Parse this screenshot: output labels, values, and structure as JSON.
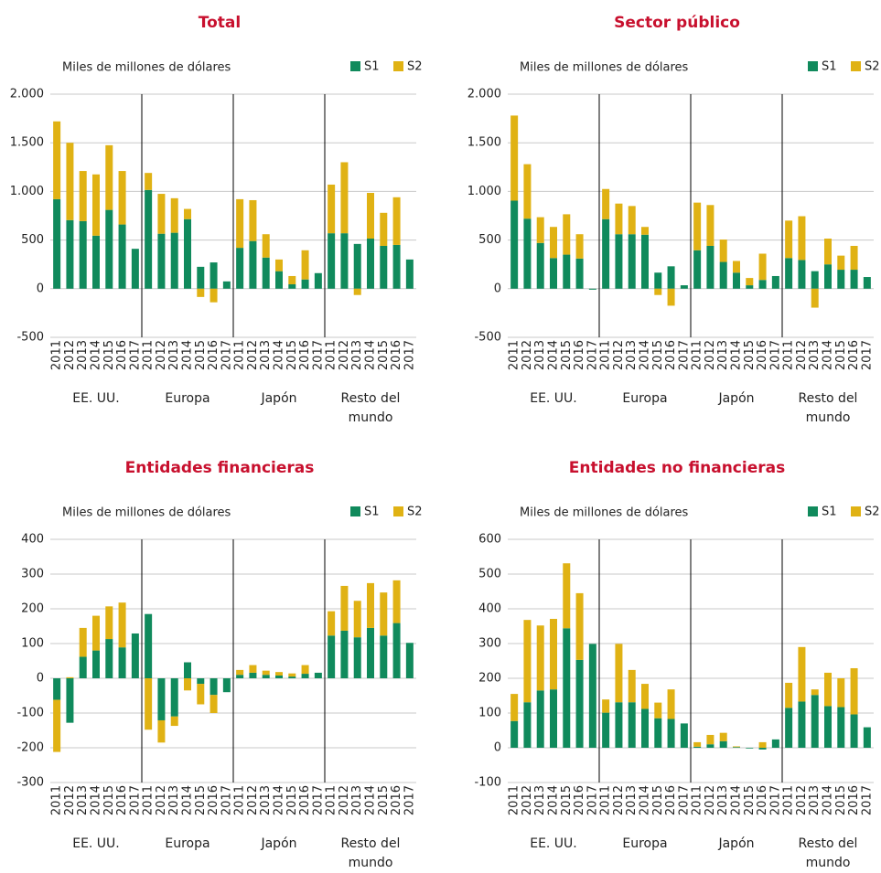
{
  "chart_data": [
    {
      "type": "bar",
      "title": "Total",
      "y_label": "Miles de millones de dólares",
      "groups": [
        "EE. UU.",
        "Europa",
        "Japón",
        "Resto del mundo"
      ],
      "categories": [
        "2011",
        "2012",
        "2013",
        "2014",
        "2015",
        "2016",
        "2017",
        "2011",
        "2012",
        "2013",
        "2014",
        "2015",
        "2016",
        "2017",
        "2011",
        "2012",
        "2013",
        "2014",
        "2015",
        "2016",
        "2017",
        "2011",
        "2012",
        "2013",
        "2014",
        "2015",
        "2016",
        "2017"
      ],
      "series": [
        {
          "name": "S1",
          "color": "#108a5c",
          "values": [
            920,
            705,
            695,
            545,
            810,
            660,
            410,
            1015,
            565,
            575,
            715,
            225,
            270,
            75,
            420,
            490,
            320,
            180,
            45,
            95,
            160,
            570,
            570,
            460,
            515,
            440,
            450,
            300
          ]
        },
        {
          "name": "S2",
          "color": "#e0b214",
          "values": [
            800,
            795,
            515,
            630,
            665,
            550,
            0,
            175,
            410,
            355,
            105,
            -85,
            -140,
            0,
            500,
            420,
            240,
            120,
            85,
            300,
            0,
            500,
            730,
            -65,
            470,
            340,
            490,
            0
          ]
        }
      ],
      "ylim": [
        -500,
        2000
      ],
      "yticks": [
        -500,
        0,
        500,
        {
          "value": 1000,
          "label": "1.000"
        },
        {
          "value": 1500,
          "label": "1.500"
        },
        {
          "value": 2000,
          "label": "2.000"
        }
      ],
      "grid": true
    },
    {
      "type": "bar",
      "title": "Sector público",
      "y_label": "Miles de millones de dólares",
      "groups": [
        "EE. UU.",
        "Europa",
        "Japón",
        "Resto del mundo"
      ],
      "categories": [
        "2011",
        "2012",
        "2013",
        "2014",
        "2015",
        "2016",
        "2017",
        "2011",
        "2012",
        "2013",
        "2014",
        "2015",
        "2016",
        "2017",
        "2011",
        "2012",
        "2013",
        "2014",
        "2015",
        "2016",
        "2017",
        "2011",
        "2012",
        "2013",
        "2014",
        "2015",
        "2016",
        "2017"
      ],
      "series": [
        {
          "name": "S1",
          "color": "#108a5c",
          "values": [
            905,
            720,
            470,
            315,
            350,
            310,
            -10,
            715,
            560,
            560,
            555,
            165,
            230,
            35,
            395,
            440,
            275,
            165,
            35,
            90,
            130,
            315,
            295,
            180,
            250,
            195,
            195,
            120
          ]
        },
        {
          "name": "S2",
          "color": "#e0b214",
          "values": [
            875,
            560,
            265,
            320,
            415,
            250,
            0,
            310,
            315,
            290,
            80,
            -65,
            -175,
            0,
            490,
            420,
            230,
            120,
            75,
            270,
            0,
            385,
            450,
            -195,
            265,
            145,
            245,
            0
          ]
        }
      ],
      "ylim": [
        -500,
        2000
      ],
      "yticks": [
        -500,
        0,
        500,
        {
          "value": 1000,
          "label": "1.000"
        },
        {
          "value": 1500,
          "label": "1.500"
        },
        {
          "value": 2000,
          "label": "2.000"
        }
      ],
      "grid": true
    },
    {
      "type": "bar",
      "title": "Entidades financieras",
      "y_label": "Miles de millones de dólares",
      "groups": [
        "EE. UU.",
        "Europa",
        "Japón",
        "Resto del mundo"
      ],
      "categories": [
        "2011",
        "2012",
        "2013",
        "2014",
        "2015",
        "2016",
        "2017",
        "2011",
        "2012",
        "2013",
        "2014",
        "2015",
        "2016",
        "2017",
        "2011",
        "2012",
        "2013",
        "2014",
        "2015",
        "2016",
        "2017",
        "2011",
        "2012",
        "2013",
        "2014",
        "2015",
        "2016",
        "2017"
      ],
      "series": [
        {
          "name": "S1",
          "color": "#108a5c",
          "values": [
            -62,
            -128,
            62,
            80,
            113,
            89,
            129,
            185,
            -121,
            -110,
            46,
            -16,
            -48,
            -40,
            10,
            16,
            10,
            8,
            5,
            13,
            16,
            123,
            137,
            118,
            145,
            123,
            159,
            102
          ]
        },
        {
          "name": "S2",
          "color": "#e0b214",
          "values": [
            -150,
            3,
            83,
            100,
            94,
            129,
            0,
            -148,
            -64,
            -27,
            -35,
            -59,
            -52,
            0,
            14,
            22,
            12,
            10,
            9,
            25,
            0,
            70,
            129,
            105,
            129,
            124,
            123,
            0
          ]
        }
      ],
      "ylim": [
        -300,
        400
      ],
      "yticks": [
        -300,
        -200,
        -100,
        0,
        100,
        200,
        300,
        400
      ],
      "grid": true
    },
    {
      "type": "bar",
      "title": "Entidades no financieras",
      "y_label": "Miles de millones de dólares",
      "groups": [
        "EE. UU.",
        "Europa",
        "Japón",
        "Resto del mundo"
      ],
      "categories": [
        "2011",
        "2012",
        "2013",
        "2014",
        "2015",
        "2016",
        "2017",
        "2011",
        "2012",
        "2013",
        "2014",
        "2015",
        "2016",
        "2017",
        "2011",
        "2012",
        "2013",
        "2014",
        "2015",
        "2016",
        "2017",
        "2011",
        "2012",
        "2013",
        "2014",
        "2015",
        "2016",
        "2017"
      ],
      "series": [
        {
          "name": "S1",
          "color": "#108a5c",
          "values": [
            77,
            131,
            165,
            168,
            344,
            253,
            299,
            101,
            131,
            131,
            112,
            85,
            83,
            70,
            3,
            10,
            19,
            2,
            -2,
            -5,
            24,
            115,
            133,
            152,
            120,
            117,
            96,
            59
          ]
        },
        {
          "name": "S2",
          "color": "#e0b214",
          "values": [
            78,
            237,
            187,
            203,
            187,
            192,
            0,
            38,
            168,
            93,
            72,
            45,
            85,
            0,
            13,
            27,
            24,
            2,
            0,
            16,
            0,
            72,
            157,
            16,
            96,
            83,
            133,
            0
          ]
        }
      ],
      "ylim": [
        -100,
        600
      ],
      "yticks": [
        -100,
        0,
        100,
        200,
        300,
        400,
        500,
        600
      ],
      "grid": true
    }
  ]
}
